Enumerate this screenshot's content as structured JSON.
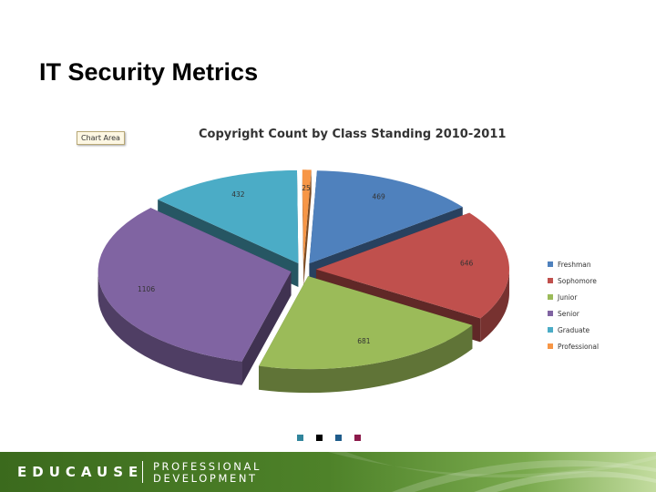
{
  "slide": {
    "title": "IT Security Metrics"
  },
  "chart_area_tag": "Chart Area",
  "chart_data": {
    "type": "pie",
    "title": "Copyright Count by Class Standing 2010-2011",
    "categories": [
      "Freshman",
      "Sophomore",
      "Junior",
      "Senior",
      "Graduate",
      "Professional"
    ],
    "values": [
      469,
      646,
      681,
      1106,
      432,
      25
    ],
    "colors": [
      "#4f81bd",
      "#c0504d",
      "#9bbb59",
      "#8064a2",
      "#4bacc6",
      "#f79646"
    ],
    "legend_position": "right",
    "exploded": true,
    "three_d": true
  },
  "slide_dots": [
    "#31859c",
    "#000000",
    "#1f5c8b",
    "#8c1a4b"
  ],
  "footer": {
    "logo": "EDUCAUSE",
    "line1": "PROFESSIONAL",
    "line2": "DEVELOPMENT"
  }
}
